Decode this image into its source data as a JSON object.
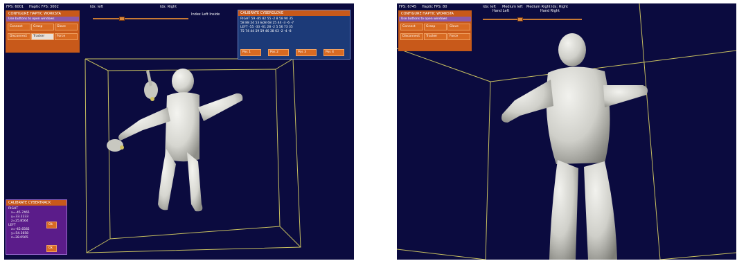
{
  "left_view": {
    "hud": {
      "fps": "FPS: 6001",
      "haptic_fps": "Haptic FPS: 3002",
      "idx_left": "Idx: left",
      "idx_right": "Idx: Right",
      "index_status": "Index Left Inside"
    },
    "configure_panel": {
      "title": "CONFIGURE HAPTIC WORKSTA",
      "subtitle": "Use buttons to open windows",
      "buttons": [
        "Connect",
        "Grasp",
        "Glove",
        "Disconnect",
        "Tracker",
        "Force"
      ]
    },
    "calibrate_glove": {
      "title": "CALIBRATE CYBERGLOVE",
      "rows": [
        "RIGHT 59 -85 82 55 -2 8 58 90 35",
        "58 88 24 53 &08 68 25 44 -3 -6 -7",
        "LEFT -55 -33 -61 28 -2 5 56 73 35",
        "75 74 44 59 59 46 38 63 -2 -4 -8"
      ],
      "pos_buttons": [
        "Pos 1",
        "Pos 2",
        "Pos 3",
        "Pos 4"
      ]
    },
    "calibrate_track": {
      "title": "CALIBRATE CYBERTRACK",
      "right_label": "RIGHT",
      "right_lines": [
        "x=-45.7465",
        "y=33.2233",
        "z=25.8564"
      ],
      "left_label": "LEFT",
      "left_lines": [
        "x=-45.6582",
        "y=54.3658",
        "z=28.0565"
      ],
      "ok_label": "Ok"
    }
  },
  "right_view": {
    "hud": {
      "fps": "FPS: 6745",
      "haptic_fps": "Haptic FPS: 80",
      "idx_left": "Idx: left",
      "medium_left": "Medium left",
      "hand_left": "Hand Left",
      "medium_right": "Medium Right",
      "idx_right": "Idx: Right",
      "hand_right": "Hand Right"
    },
    "configure_panel": {
      "title": "CONFIGURE HAPTIC WORKSTA",
      "subtitle": "Use buttons to open windows",
      "buttons": [
        "Connect",
        "Grasp",
        "Glove",
        "Disconnect",
        "Tracker",
        "Force"
      ]
    }
  },
  "colors": {
    "scene_background": "#0b0b3f",
    "panel_orange": "#c8591a",
    "glove_panel_blue": "#1c3a78",
    "track_panel_purple": "#5b1c8a",
    "wireframe": "#c8c060",
    "figure": "#d8d8d4"
  }
}
